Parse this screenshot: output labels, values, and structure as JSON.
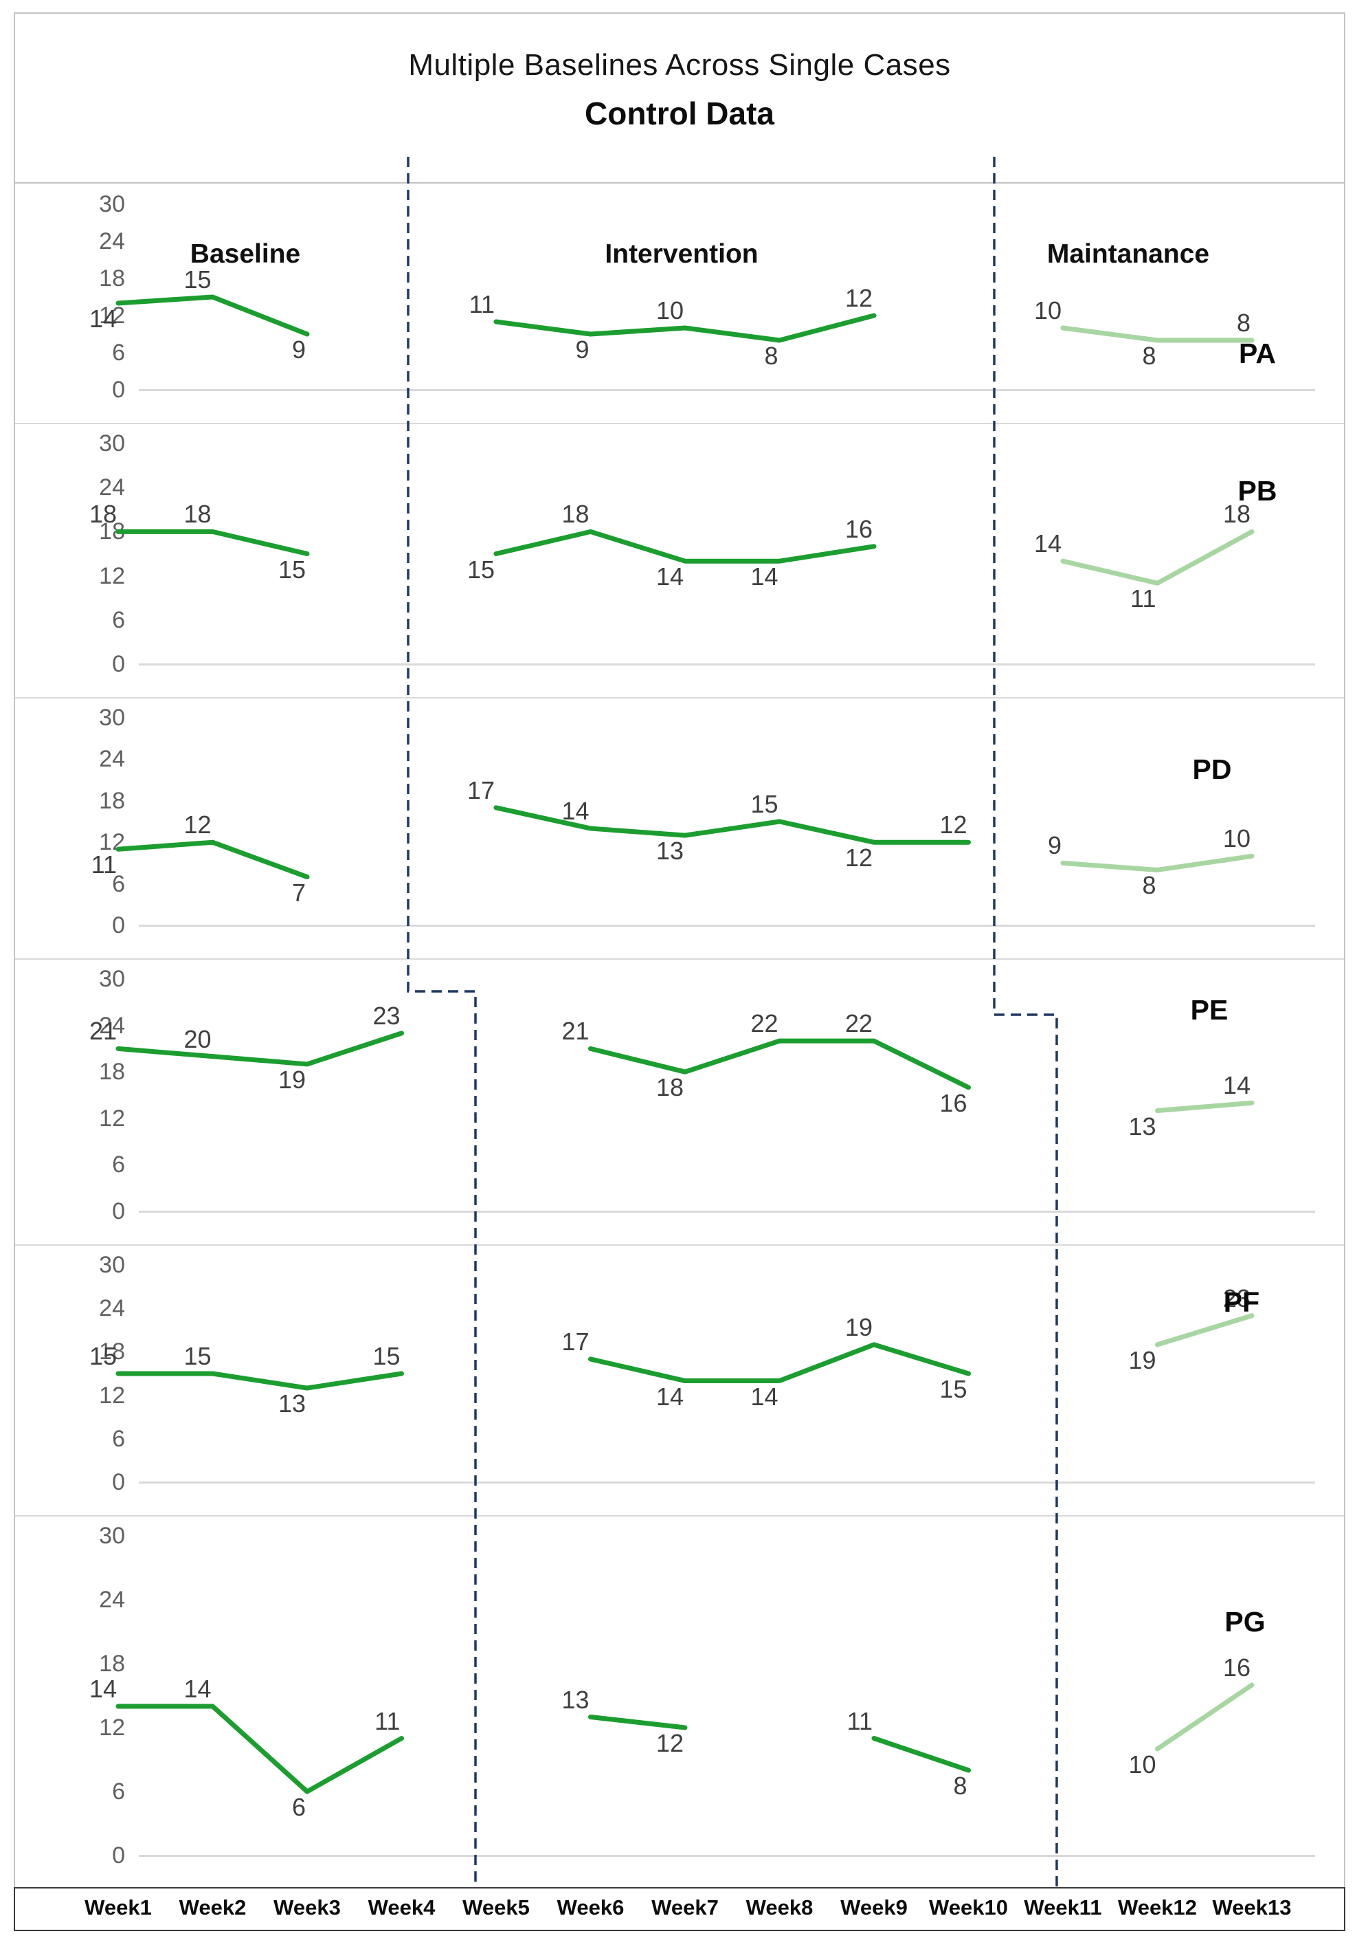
{
  "title": {
    "line1": "Multiple Baselines Across Single Cases",
    "line2": "Control Data"
  },
  "phase_labels": [
    "Baseline",
    "Intervention",
    "Maintanance"
  ],
  "x_axis": {
    "categories": [
      "Week1",
      "Week2",
      "Week3",
      "Week4",
      "Week5",
      "Week6",
      "Week7",
      "Week8",
      "Week9",
      "Week10",
      "Week11",
      "Week12",
      "Week13"
    ]
  },
  "y_axis": {
    "ticks": [
      30,
      24,
      18,
      12,
      6,
      0
    ],
    "min": 0,
    "max": 30
  },
  "colors": {
    "primary_line": "#1b9e2f",
    "maintenance_line": "#a8d6a2",
    "phase_divider": "#1f3864",
    "value_label": "#3f3f3f",
    "tick_label": "#5f5f5f"
  },
  "chart_data": {
    "type": "line",
    "title": "Multiple Baselines Across Single Cases",
    "subtitle": "Control Data",
    "x": [
      "Week1",
      "Week2",
      "Week3",
      "Week4",
      "Week5",
      "Week6",
      "Week7",
      "Week8",
      "Week9",
      "Week10",
      "Week11",
      "Week12",
      "Week13"
    ],
    "ylim": [
      0,
      30
    ],
    "yticks": [
      30,
      24,
      18,
      12,
      6,
      0
    ],
    "grid": "zero-line-only",
    "legend": "none",
    "phases": [
      "Baseline",
      "Intervention",
      "Maintanance"
    ],
    "panels": [
      {
        "id": "PA",
        "label": "PA",
        "series": [
          {
            "phase": "Baseline",
            "shade": "dark",
            "points": [
              [
                1,
                14
              ],
              [
                2,
                15
              ],
              [
                3,
                9
              ]
            ]
          },
          {
            "phase": "Intervention",
            "shade": "dark",
            "points": [
              [
                5,
                11
              ],
              [
                6,
                9
              ],
              [
                7,
                10
              ],
              [
                8,
                8
              ],
              [
                9,
                12
              ]
            ]
          },
          {
            "phase": "Maintanance",
            "shade": "light",
            "points": [
              [
                11,
                10
              ],
              [
                12,
                8
              ],
              [
                13,
                8
              ]
            ]
          }
        ]
      },
      {
        "id": "PB",
        "label": "PB",
        "series": [
          {
            "phase": "Baseline",
            "shade": "dark",
            "points": [
              [
                1,
                18
              ],
              [
                2,
                18
              ],
              [
                3,
                15
              ]
            ]
          },
          {
            "phase": "Intervention",
            "shade": "dark",
            "points": [
              [
                5,
                15
              ],
              [
                6,
                18
              ],
              [
                7,
                14
              ],
              [
                8,
                14
              ],
              [
                9,
                16
              ]
            ]
          },
          {
            "phase": "Maintanance",
            "shade": "light",
            "points": [
              [
                11,
                14
              ],
              [
                12,
                11
              ],
              [
                13,
                18
              ]
            ]
          }
        ]
      },
      {
        "id": "PD",
        "label": "PD",
        "series": [
          {
            "phase": "Baseline",
            "shade": "dark",
            "points": [
              [
                1,
                11
              ],
              [
                2,
                12
              ],
              [
                3,
                7
              ]
            ]
          },
          {
            "phase": "Intervention",
            "shade": "dark",
            "points": [
              [
                5,
                17
              ],
              [
                6,
                14
              ],
              [
                7,
                13
              ],
              [
                8,
                15
              ],
              [
                9,
                12
              ],
              [
                10,
                12
              ]
            ]
          },
          {
            "phase": "Maintanance",
            "shade": "light",
            "points": [
              [
                11,
                9
              ],
              [
                12,
                8
              ],
              [
                13,
                10
              ]
            ]
          }
        ]
      },
      {
        "id": "PE",
        "label": "PE",
        "series": [
          {
            "phase": "Baseline",
            "shade": "dark",
            "points": [
              [
                1,
                21
              ],
              [
                2,
                20
              ],
              [
                3,
                19
              ],
              [
                4,
                23
              ]
            ]
          },
          {
            "phase": "Intervention",
            "shade": "dark",
            "points": [
              [
                6,
                21
              ],
              [
                7,
                18
              ],
              [
                8,
                22
              ],
              [
                9,
                22
              ],
              [
                10,
                16
              ]
            ]
          },
          {
            "phase": "Maintanance",
            "shade": "light",
            "points": [
              [
                12,
                13
              ],
              [
                13,
                14
              ]
            ]
          }
        ]
      },
      {
        "id": "PF",
        "label": "PF",
        "series": [
          {
            "phase": "Baseline",
            "shade": "dark",
            "points": [
              [
                1,
                15
              ],
              [
                2,
                15
              ],
              [
                3,
                13
              ],
              [
                4,
                15
              ]
            ]
          },
          {
            "phase": "Intervention",
            "shade": "dark",
            "points": [
              [
                6,
                17
              ],
              [
                7,
                14
              ],
              [
                8,
                14
              ],
              [
                9,
                19
              ],
              [
                10,
                15
              ]
            ]
          },
          {
            "phase": "Maintanance",
            "shade": "light",
            "points": [
              [
                12,
                19
              ],
              [
                13,
                23
              ]
            ]
          }
        ]
      },
      {
        "id": "PG",
        "label": "PG",
        "series": [
          {
            "phase": "Baseline",
            "shade": "dark",
            "points": [
              [
                1,
                14
              ],
              [
                2,
                14
              ],
              [
                3,
                6
              ],
              [
                4,
                11
              ]
            ]
          },
          {
            "phase": "Intervention",
            "shade": "dark",
            "points": [
              [
                6,
                13
              ],
              [
                7,
                12
              ]
            ]
          },
          {
            "phase": "Intervention",
            "shade": "dark",
            "points": [
              [
                9,
                11
              ],
              [
                10,
                8
              ]
            ]
          },
          {
            "phase": "Maintanance",
            "shade": "light",
            "points": [
              [
                12,
                10
              ],
              [
                13,
                16
              ]
            ]
          }
        ]
      }
    ]
  }
}
